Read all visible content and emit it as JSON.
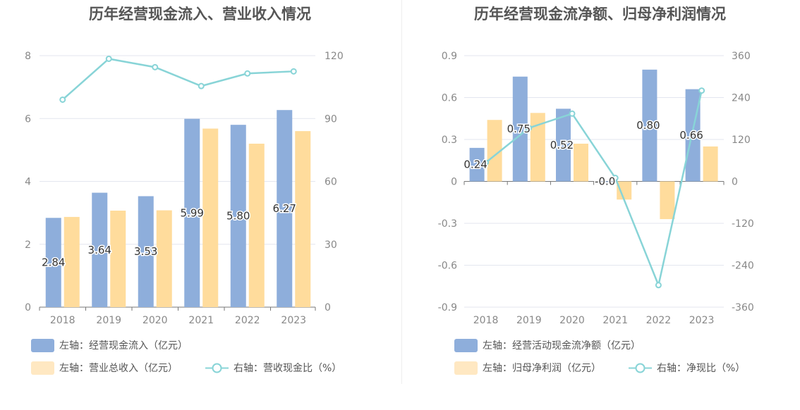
{
  "chart_data": [
    {
      "type": "bar",
      "title": "历年经营现金流入、营业收入情况",
      "categories": [
        "2018",
        "2019",
        "2020",
        "2021",
        "2022",
        "2023"
      ],
      "ylim_left": [
        0,
        8
      ],
      "yticks_left": [
        "0",
        "2",
        "4",
        "6",
        "8"
      ],
      "ylim_right": [
        0,
        120
      ],
      "yticks_right": [
        "0",
        "30",
        "60",
        "90",
        "120"
      ],
      "series": [
        {
          "name": "左轴：经营现金流入（亿元）",
          "axis": "left",
          "kind": "bar",
          "color": "#8eaedb",
          "values": [
            2.84,
            3.64,
            3.53,
            5.99,
            5.8,
            6.27
          ],
          "labels": [
            "2.84",
            "3.64",
            "3.53",
            "5.99",
            "5.80",
            "6.27"
          ]
        },
        {
          "name": "左轴：营业总收入（亿元）",
          "axis": "left",
          "kind": "bar",
          "color": "#ffdc9c",
          "values": [
            2.87,
            3.07,
            3.08,
            5.68,
            5.2,
            5.6
          ]
        },
        {
          "name": "右轴：营收现金比（%）",
          "axis": "right",
          "kind": "line",
          "color": "#88d4d7",
          "values": [
            99,
            118.5,
            114.5,
            105.5,
            111.5,
            112.5
          ]
        }
      ]
    },
    {
      "type": "bar",
      "title": "历年经营现金流净额、归母净利润情况",
      "categories": [
        "2018",
        "2019",
        "2020",
        "2021",
        "2022",
        "2023"
      ],
      "ylim_left": [
        -0.9,
        0.9
      ],
      "yticks_left": [
        "0.9",
        "0.6",
        "0.3",
        "0",
        "-0.3",
        "-0.6",
        "-0.9"
      ],
      "ylim_right": [
        -360,
        360
      ],
      "yticks_right": [
        "360",
        "240",
        "120",
        "0",
        "-120",
        "-240",
        "-360"
      ],
      "series": [
        {
          "name": "左轴：经营活动现金流净额（亿元）",
          "axis": "left",
          "kind": "bar",
          "color": "#8eaedb",
          "values": [
            0.24,
            0.75,
            0.52,
            -0.005,
            0.8,
            0.66
          ],
          "labels": [
            "0.24",
            "0.75",
            "0.52",
            "-0.0",
            "0.80",
            "0.66"
          ]
        },
        {
          "name": "左轴：归母净利润（亿元）",
          "axis": "left",
          "kind": "bar",
          "color": "#ffdc9c",
          "values": [
            0.44,
            0.49,
            0.27,
            -0.13,
            -0.27,
            0.25
          ]
        },
        {
          "name": "右轴：净现比（%）",
          "axis": "right",
          "kind": "line",
          "color": "#88d4d7",
          "values": [
            54,
            153,
            194,
            10,
            -297,
            260
          ]
        }
      ]
    }
  ]
}
